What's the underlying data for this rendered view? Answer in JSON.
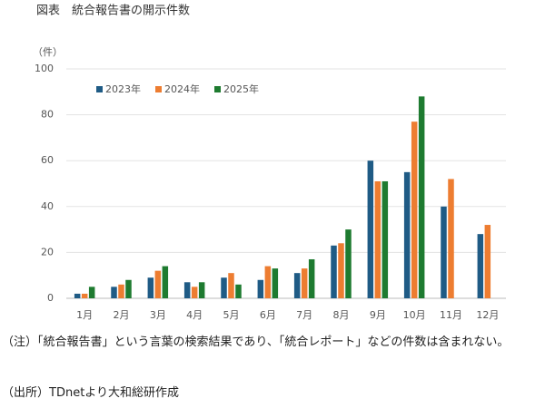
{
  "chart_data": {
    "type": "bar",
    "title": "図表　統合報告書の開示件数",
    "y_label": "（件）",
    "categories": [
      "1月",
      "2月",
      "3月",
      "4月",
      "5月",
      "6月",
      "7月",
      "8月",
      "9月",
      "10月",
      "11月",
      "12月"
    ],
    "series": [
      {
        "name": "2023年",
        "color": "#1f5b85",
        "values": [
          2,
          5,
          9,
          7,
          9,
          8,
          11,
          23,
          60,
          55,
          40,
          28
        ]
      },
      {
        "name": "2024年",
        "color": "#ed7d31",
        "values": [
          2,
          6,
          12,
          5,
          11,
          14,
          13,
          24,
          51,
          77,
          52,
          32
        ]
      },
      {
        "name": "2025年",
        "color": "#1e7b30",
        "values": [
          5,
          8,
          14,
          7,
          6,
          13,
          17,
          30,
          51,
          88,
          null,
          null
        ]
      }
    ],
    "ylim": [
      0,
      100
    ],
    "yticks": [
      0,
      20,
      40,
      60,
      80,
      100
    ],
    "grid": true,
    "legend": "top-left",
    "notes": [
      "（注）「統合報告書」という言葉の検索結果であり、「統合レポート」などの件数は含まれない。",
      "（出所）TDnetより大和総研作成"
    ]
  }
}
